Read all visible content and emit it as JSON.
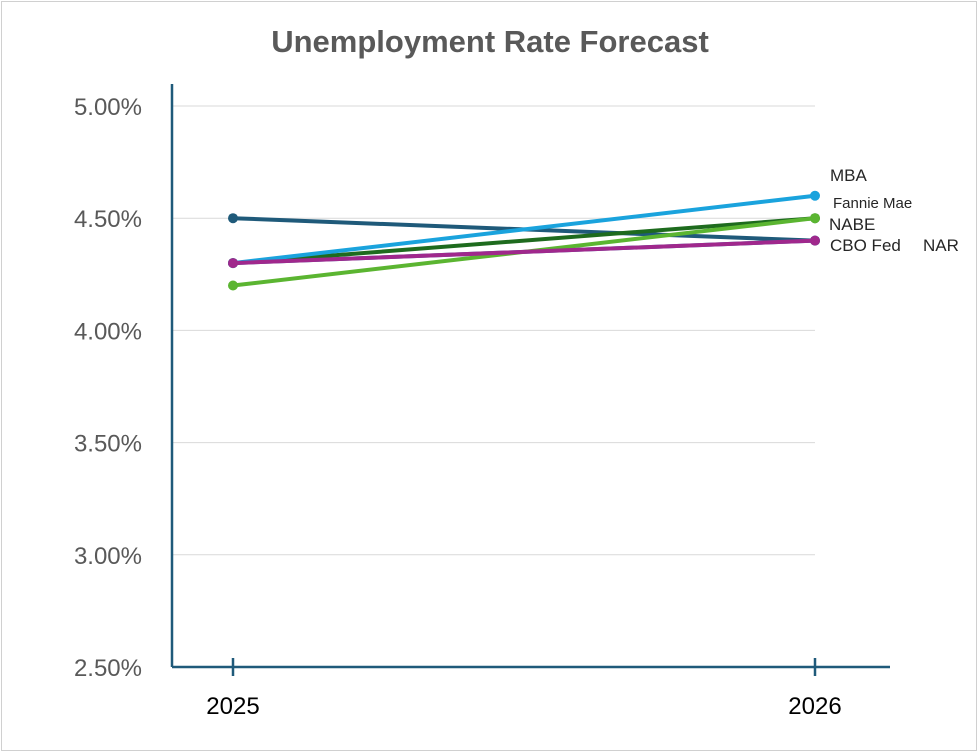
{
  "chart_data": {
    "type": "line",
    "title": "Unemployment Rate Forecast",
    "xlabel": "",
    "ylabel": "",
    "categories": [
      "2025",
      "2026"
    ],
    "ylim": [
      2.5,
      5.0
    ],
    "yticks": [
      2.5,
      3.0,
      3.5,
      4.0,
      4.5,
      5.0
    ],
    "ytick_labels": [
      "2.50%",
      "3.00%",
      "3.50%",
      "4.00%",
      "4.50%",
      "5.00%"
    ],
    "grid": true,
    "series": [
      {
        "name": "CBO",
        "values": [
          4.5,
          4.4
        ],
        "color": "#1f5a7a"
      },
      {
        "name": "NAR",
        "values": [
          4.3,
          4.4
        ],
        "color": "#2e75b6"
      },
      {
        "name": "Fannie Mae",
        "values": [
          4.3,
          4.5
        ],
        "color": "#1e6b1e"
      },
      {
        "name": "MBA",
        "values": [
          4.3,
          4.6
        ],
        "color": "#1aa3dd"
      },
      {
        "name": "NABE",
        "values": [
          4.2,
          4.5
        ],
        "color": "#5bb531"
      },
      {
        "name": "Fed",
        "values": [
          4.3,
          4.4
        ],
        "color": "#a0288c"
      }
    ],
    "annotations": [
      "MBA",
      "Fannie Mae",
      "NABE",
      "CBO Fed",
      "NAR"
    ]
  }
}
